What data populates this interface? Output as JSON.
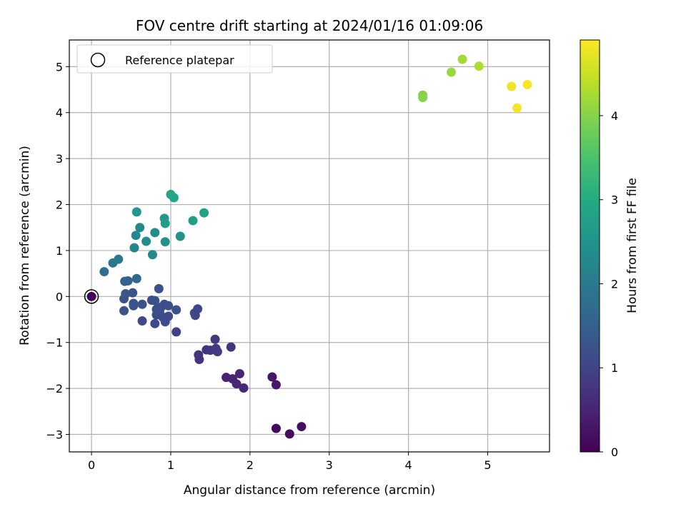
{
  "chart_data": {
    "type": "scatter",
    "title": "FOV centre drift starting at 2024/01/16 01:09:06",
    "xlabel": "Angular distance from reference (arcmin)",
    "ylabel": "Rotation from reference (arcmin)",
    "xlim": [
      -0.28,
      5.78
    ],
    "ylim": [
      -3.38,
      5.58
    ],
    "xticks": [
      0,
      1,
      2,
      3,
      4,
      5
    ],
    "yticks": [
      -3,
      -2,
      -1,
      0,
      1,
      2,
      3,
      4,
      5
    ],
    "grid": true,
    "legend": {
      "position": "top-left",
      "entries": [
        "Reference platepar"
      ]
    },
    "reference_point": {
      "x": 0,
      "y": 0,
      "label": "Reference platepar"
    },
    "colorbar": {
      "label": "Hours from first FF file",
      "colormap": "viridis",
      "range": [
        0,
        4.9
      ],
      "ticks": [
        0,
        1,
        2,
        3,
        4
      ]
    },
    "points": [
      {
        "x": 0.0,
        "y": 0.0,
        "c": 0.0
      },
      {
        "x": 2.33,
        "y": -2.87,
        "c": 0.12
      },
      {
        "x": 2.5,
        "y": -2.99,
        "c": 0.15
      },
      {
        "x": 2.65,
        "y": -2.83,
        "c": 0.18
      },
      {
        "x": 2.28,
        "y": -1.75,
        "c": 0.3
      },
      {
        "x": 2.33,
        "y": -1.92,
        "c": 0.32
      },
      {
        "x": 1.7,
        "y": -1.76,
        "c": 0.45
      },
      {
        "x": 1.78,
        "y": -1.79,
        "c": 0.47
      },
      {
        "x": 1.83,
        "y": -1.9,
        "c": 0.5
      },
      {
        "x": 1.87,
        "y": -1.68,
        "c": 0.52
      },
      {
        "x": 1.92,
        "y": -1.99,
        "c": 0.55
      },
      {
        "x": 1.35,
        "y": -1.27,
        "c": 0.7
      },
      {
        "x": 1.36,
        "y": -1.37,
        "c": 0.72
      },
      {
        "x": 1.45,
        "y": -1.16,
        "c": 0.74
      },
      {
        "x": 1.5,
        "y": -1.17,
        "c": 0.76
      },
      {
        "x": 1.56,
        "y": -0.93,
        "c": 0.78
      },
      {
        "x": 1.57,
        "y": -1.13,
        "c": 0.8
      },
      {
        "x": 1.59,
        "y": -1.2,
        "c": 0.82
      },
      {
        "x": 1.76,
        "y": -1.1,
        "c": 0.78
      },
      {
        "x": 1.07,
        "y": -0.77,
        "c": 0.95
      },
      {
        "x": 1.3,
        "y": -0.36,
        "c": 1.0
      },
      {
        "x": 1.31,
        "y": -0.41,
        "c": 1.02
      },
      {
        "x": 1.34,
        "y": -0.27,
        "c": 1.04
      },
      {
        "x": 0.8,
        "y": -0.59,
        "c": 1.05
      },
      {
        "x": 0.64,
        "y": -0.53,
        "c": 1.07
      },
      {
        "x": 0.93,
        "y": -0.55,
        "c": 1.08
      },
      {
        "x": 0.97,
        "y": -0.43,
        "c": 1.1
      },
      {
        "x": 0.9,
        "y": -0.45,
        "c": 1.12
      },
      {
        "x": 0.82,
        "y": -0.4,
        "c": 1.13
      },
      {
        "x": 0.86,
        "y": -0.34,
        "c": 1.14
      },
      {
        "x": 0.82,
        "y": -0.28,
        "c": 1.15
      },
      {
        "x": 0.88,
        "y": -0.23,
        "c": 1.16
      },
      {
        "x": 0.92,
        "y": -0.17,
        "c": 1.17
      },
      {
        "x": 0.97,
        "y": -0.2,
        "c": 1.18
      },
      {
        "x": 1.07,
        "y": -0.29,
        "c": 1.19
      },
      {
        "x": 0.76,
        "y": -0.08,
        "c": 1.2
      },
      {
        "x": 0.8,
        "y": -0.09,
        "c": 1.21
      },
      {
        "x": 0.85,
        "y": 0.17,
        "c": 1.22
      },
      {
        "x": 0.64,
        "y": -0.17,
        "c": 1.23
      },
      {
        "x": 0.53,
        "y": -0.2,
        "c": 1.24
      },
      {
        "x": 0.53,
        "y": -0.15,
        "c": 1.25
      },
      {
        "x": 0.52,
        "y": 0.08,
        "c": 1.26
      },
      {
        "x": 0.41,
        "y": -0.05,
        "c": 1.27
      },
      {
        "x": 0.43,
        "y": 0.06,
        "c": 1.28
      },
      {
        "x": 0.41,
        "y": -0.31,
        "c": 1.29
      },
      {
        "x": 0.42,
        "y": 0.33,
        "c": 1.5
      },
      {
        "x": 0.46,
        "y": 0.34,
        "c": 1.55
      },
      {
        "x": 0.57,
        "y": 0.39,
        "c": 1.6
      },
      {
        "x": 0.16,
        "y": 0.54,
        "c": 1.85
      },
      {
        "x": 0.27,
        "y": 0.73,
        "c": 1.95
      },
      {
        "x": 0.34,
        "y": 0.81,
        "c": 2.0
      },
      {
        "x": 0.54,
        "y": 1.06,
        "c": 2.2
      },
      {
        "x": 0.56,
        "y": 1.33,
        "c": 2.25
      },
      {
        "x": 0.61,
        "y": 1.5,
        "c": 2.3
      },
      {
        "x": 0.69,
        "y": 1.2,
        "c": 2.35
      },
      {
        "x": 0.77,
        "y": 0.91,
        "c": 2.3
      },
      {
        "x": 0.8,
        "y": 1.39,
        "c": 2.4
      },
      {
        "x": 0.93,
        "y": 1.19,
        "c": 2.45
      },
      {
        "x": 1.12,
        "y": 1.31,
        "c": 2.5
      },
      {
        "x": 0.57,
        "y": 1.84,
        "c": 2.6
      },
      {
        "x": 0.92,
        "y": 1.7,
        "c": 2.65
      },
      {
        "x": 0.93,
        "y": 1.59,
        "c": 2.7
      },
      {
        "x": 1.28,
        "y": 1.65,
        "c": 2.75
      },
      {
        "x": 1.42,
        "y": 1.82,
        "c": 2.8
      },
      {
        "x": 1.0,
        "y": 2.22,
        "c": 2.85
      },
      {
        "x": 1.04,
        "y": 2.15,
        "c": 2.9
      },
      {
        "x": 4.18,
        "y": 4.38,
        "c": 4.0
      },
      {
        "x": 4.18,
        "y": 4.33,
        "c": 4.02
      },
      {
        "x": 4.54,
        "y": 4.88,
        "c": 4.15
      },
      {
        "x": 4.68,
        "y": 5.16,
        "c": 4.22
      },
      {
        "x": 4.89,
        "y": 5.01,
        "c": 4.3
      },
      {
        "x": 5.3,
        "y": 4.57,
        "c": 4.78
      },
      {
        "x": 5.37,
        "y": 4.1,
        "c": 4.82
      },
      {
        "x": 5.5,
        "y": 4.61,
        "c": 4.86
      }
    ]
  }
}
